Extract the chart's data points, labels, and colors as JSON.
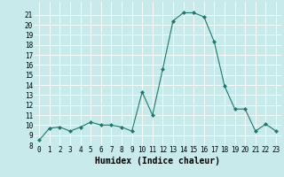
{
  "x": [
    0,
    1,
    2,
    3,
    4,
    5,
    6,
    7,
    8,
    9,
    10,
    11,
    12,
    13,
    14,
    15,
    16,
    17,
    18,
    19,
    20,
    21,
    22,
    23
  ],
  "y": [
    8.5,
    9.7,
    9.8,
    9.4,
    9.8,
    10.3,
    10.0,
    10.0,
    9.8,
    9.4,
    13.3,
    11.0,
    15.6,
    20.4,
    21.2,
    21.2,
    20.8,
    18.3,
    13.9,
    11.6,
    11.6,
    9.4,
    10.1,
    9.4
  ],
  "line_color": "#1a7a6e",
  "marker_color": "#1a7a6e",
  "bg_color": "#c8eaea",
  "grid_color": "#ffffff",
  "xlabel": "Humidex (Indice chaleur)",
  "ylim": [
    8,
    22
  ],
  "xlim": [
    -0.5,
    23.5
  ],
  "yticks": [
    8,
    9,
    10,
    11,
    12,
    13,
    14,
    15,
    16,
    17,
    18,
    19,
    20,
    21
  ],
  "xticks": [
    0,
    1,
    2,
    3,
    4,
    5,
    6,
    7,
    8,
    9,
    10,
    11,
    12,
    13,
    14,
    15,
    16,
    17,
    18,
    19,
    20,
    21,
    22,
    23
  ],
  "xlabel_fontsize": 7,
  "tick_fontsize": 5.5
}
